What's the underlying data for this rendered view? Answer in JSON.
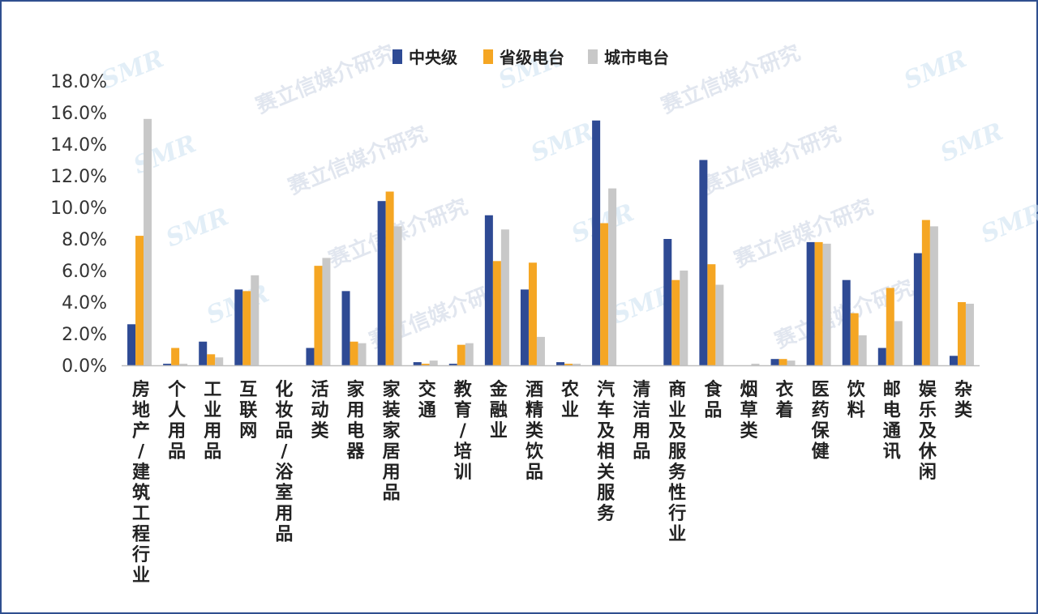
{
  "colors": {
    "central": "#2e4a94",
    "provincial": "#f5a623",
    "city": "#c8c8c8",
    "axis": "#bfbfbf"
  },
  "watermark": {
    "text": "赛立信媒介研究",
    "logo": "SMR"
  },
  "chart_data": {
    "type": "bar",
    "title": "",
    "xlabel": "",
    "ylabel": "",
    "ylim": [
      0,
      18
    ],
    "yticks": [
      "18.0%",
      "16.0%",
      "14.0%",
      "12.0%",
      "10.0%",
      "8.0%",
      "6.0%",
      "4.0%",
      "2.0%",
      "0.0%"
    ],
    "legend_position": "top-center",
    "grid": false,
    "categories": [
      "房地产/建筑工程行业",
      "个人用品",
      "工业用品",
      "互联网",
      "化妆品/浴室用品",
      "活动类",
      "家用电器",
      "家装家居用品",
      "交通",
      "教育/培训",
      "金融业",
      "酒精类饮品",
      "农业",
      "汽车及相关服务",
      "清洁用品",
      "商业及服务性行业",
      "食品",
      "烟草类",
      "衣着",
      "医药保健",
      "饮料",
      "邮电通讯",
      "娱乐及休闲",
      "杂类"
    ],
    "series": [
      {
        "name": "中央级",
        "values": [
          2.6,
          0.1,
          1.5,
          4.8,
          0.0,
          1.1,
          4.7,
          10.4,
          0.2,
          0.1,
          9.5,
          4.8,
          0.2,
          15.5,
          0.0,
          8.0,
          13.0,
          0.0,
          0.4,
          7.8,
          5.4,
          1.1,
          7.1,
          0.6
        ]
      },
      {
        "name": "省级电台",
        "values": [
          8.2,
          1.1,
          0.7,
          4.7,
          0.0,
          6.3,
          1.5,
          11.0,
          0.1,
          1.3,
          6.6,
          6.5,
          0.1,
          9.0,
          0.0,
          5.4,
          6.4,
          0.0,
          0.4,
          7.8,
          3.3,
          4.9,
          9.2,
          4.0
        ]
      },
      {
        "name": "城市电台",
        "values": [
          15.6,
          0.1,
          0.5,
          5.7,
          0.0,
          6.8,
          1.4,
          8.8,
          0.3,
          1.4,
          8.6,
          1.8,
          0.1,
          11.2,
          0.0,
          6.0,
          5.1,
          0.1,
          0.3,
          7.7,
          1.9,
          2.8,
          8.8,
          3.9
        ]
      }
    ]
  }
}
